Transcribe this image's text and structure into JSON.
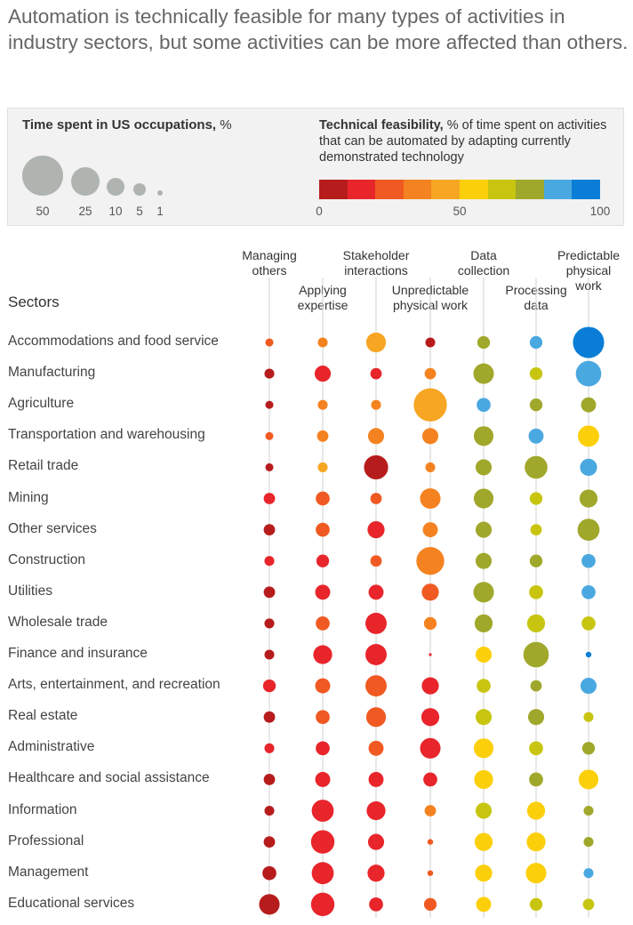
{
  "title": "Automation is technically feasible for many types of activities in industry sectors, but some activities can be more affected than others.",
  "legend": {
    "size_title_bold": "Time spent in US occupations,",
    "size_title_rest": " %",
    "sizes": [
      {
        "label": "50",
        "value": 50
      },
      {
        "label": "25",
        "value": 25
      },
      {
        "label": "10",
        "value": 10
      },
      {
        "label": "5",
        "value": 5
      },
      {
        "label": "1",
        "value": 1
      }
    ],
    "color_title_bold": "Technical feasibility,",
    "color_title_rest": " % of time spent on activities that can be automated by adapting currently demonstrated technology",
    "color_scale": [
      "#b71c1c",
      "#e8252b",
      "#f05a22",
      "#f58220",
      "#f6a623",
      "#fccf0b",
      "#c8c511",
      "#a0a82b",
      "#4aa8e0",
      "#0a7ed6"
    ],
    "scale_labels": [
      "0",
      "50",
      "100"
    ]
  },
  "colors": {
    "axis_line": "#d0d0d0"
  },
  "chart_data": {
    "type": "bubble-matrix",
    "title": "Automation is technically feasible for many types of activities in industry sectors, but some activities can be more affected than others.",
    "row_header": "Sectors",
    "size_measure": "Time spent in US occupations, %",
    "color_measure": "Technical feasibility, % of time spent on activities that can be automated by adapting currently demonstrated technology",
    "color_range": [
      0,
      100
    ],
    "columns": [
      {
        "label": "Managing others"
      },
      {
        "label": "Applying expertise"
      },
      {
        "label": "Stakeholder interactions"
      },
      {
        "label": "Unpredictable physical work"
      },
      {
        "label": "Data collection"
      },
      {
        "label": "Processing data"
      },
      {
        "label": "Predictable physical work"
      }
    ],
    "rows": [
      {
        "sector": "Accommodations and food service",
        "cells": [
          {
            "size": 2,
            "feas": 25
          },
          {
            "size": 3,
            "feas": 32
          },
          {
            "size": 12,
            "feas": 42
          },
          {
            "size": 3,
            "feas": 5
          },
          {
            "size": 5,
            "feas": 75
          },
          {
            "size": 5,
            "feas": 85
          },
          {
            "size": 30,
            "feas": 95
          }
        ]
      },
      {
        "sector": "Manufacturing",
        "cells": [
          {
            "size": 3,
            "feas": 5
          },
          {
            "size": 8,
            "feas": 15
          },
          {
            "size": 4,
            "feas": 15
          },
          {
            "size": 4,
            "feas": 35
          },
          {
            "size": 13,
            "feas": 75
          },
          {
            "size": 5,
            "feas": 65
          },
          {
            "size": 20,
            "feas": 85
          }
        ]
      },
      {
        "sector": "Agriculture",
        "cells": [
          {
            "size": 2,
            "feas": 5
          },
          {
            "size": 3,
            "feas": 32
          },
          {
            "size": 3,
            "feas": 32
          },
          {
            "size": 34,
            "feas": 42
          },
          {
            "size": 6,
            "feas": 85
          },
          {
            "size": 5,
            "feas": 75
          },
          {
            "size": 7,
            "feas": 75
          }
        ]
      },
      {
        "sector": "Transportation and warehousing",
        "cells": [
          {
            "size": 2,
            "feas": 25
          },
          {
            "size": 4,
            "feas": 32
          },
          {
            "size": 8,
            "feas": 32
          },
          {
            "size": 8,
            "feas": 32
          },
          {
            "size": 12,
            "feas": 75
          },
          {
            "size": 7,
            "feas": 85
          },
          {
            "size": 14,
            "feas": 55
          }
        ]
      },
      {
        "sector": "Retail trade",
        "cells": [
          {
            "size": 2,
            "feas": 5
          },
          {
            "size": 3,
            "feas": 42
          },
          {
            "size": 18,
            "feas": 5
          },
          {
            "size": 3,
            "feas": 32
          },
          {
            "size": 8,
            "feas": 75
          },
          {
            "size": 16,
            "feas": 75
          },
          {
            "size": 9,
            "feas": 85
          }
        ]
      },
      {
        "sector": "Mining",
        "cells": [
          {
            "size": 4,
            "feas": 15
          },
          {
            "size": 6,
            "feas": 25
          },
          {
            "size": 4,
            "feas": 25
          },
          {
            "size": 13,
            "feas": 32
          },
          {
            "size": 12,
            "feas": 75
          },
          {
            "size": 5,
            "feas": 65
          },
          {
            "size": 10,
            "feas": 75
          }
        ]
      },
      {
        "sector": "Other services",
        "cells": [
          {
            "size": 4,
            "feas": 5
          },
          {
            "size": 6,
            "feas": 25
          },
          {
            "size": 9,
            "feas": 15
          },
          {
            "size": 7,
            "feas": 32
          },
          {
            "size": 8,
            "feas": 75
          },
          {
            "size": 4,
            "feas": 65
          },
          {
            "size": 15,
            "feas": 75
          }
        ]
      },
      {
        "sector": "Construction",
        "cells": [
          {
            "size": 3,
            "feas": 15
          },
          {
            "size": 5,
            "feas": 15
          },
          {
            "size": 4,
            "feas": 25
          },
          {
            "size": 24,
            "feas": 32
          },
          {
            "size": 8,
            "feas": 75
          },
          {
            "size": 5,
            "feas": 75
          },
          {
            "size": 6,
            "feas": 85
          }
        ]
      },
      {
        "sector": "Utilities",
        "cells": [
          {
            "size": 4,
            "feas": 5
          },
          {
            "size": 7,
            "feas": 15
          },
          {
            "size": 7,
            "feas": 15
          },
          {
            "size": 9,
            "feas": 25
          },
          {
            "size": 13,
            "feas": 75
          },
          {
            "size": 6,
            "feas": 65
          },
          {
            "size": 6,
            "feas": 85
          }
        ]
      },
      {
        "sector": "Wholesale trade",
        "cells": [
          {
            "size": 3,
            "feas": 5
          },
          {
            "size": 6,
            "feas": 25
          },
          {
            "size": 14,
            "feas": 15
          },
          {
            "size": 5,
            "feas": 32
          },
          {
            "size": 10,
            "feas": 75
          },
          {
            "size": 10,
            "feas": 65
          },
          {
            "size": 6,
            "feas": 65
          }
        ]
      },
      {
        "sector": "Finance and insurance",
        "cells": [
          {
            "size": 3,
            "feas": 5
          },
          {
            "size": 11,
            "feas": 15
          },
          {
            "size": 14,
            "feas": 15
          },
          {
            "size": 0.2,
            "feas": 15
          },
          {
            "size": 8,
            "feas": 55
          },
          {
            "size": 20,
            "feas": 75
          },
          {
            "size": 1,
            "feas": 95
          }
        ]
      },
      {
        "sector": "Arts, entertainment, and recreation",
        "cells": [
          {
            "size": 5,
            "feas": 15
          },
          {
            "size": 7,
            "feas": 25
          },
          {
            "size": 14,
            "feas": 25
          },
          {
            "size": 9,
            "feas": 15
          },
          {
            "size": 6,
            "feas": 65
          },
          {
            "size": 4,
            "feas": 75
          },
          {
            "size": 8,
            "feas": 85
          }
        ]
      },
      {
        "sector": "Real estate",
        "cells": [
          {
            "size": 4,
            "feas": 5
          },
          {
            "size": 6,
            "feas": 25
          },
          {
            "size": 12,
            "feas": 25
          },
          {
            "size": 10,
            "feas": 15
          },
          {
            "size": 8,
            "feas": 65
          },
          {
            "size": 8,
            "feas": 75
          },
          {
            "size": 3,
            "feas": 65
          }
        ]
      },
      {
        "sector": "Administrative",
        "cells": [
          {
            "size": 3,
            "feas": 15
          },
          {
            "size": 6,
            "feas": 15
          },
          {
            "size": 7,
            "feas": 25
          },
          {
            "size": 13,
            "feas": 15
          },
          {
            "size": 12,
            "feas": 55
          },
          {
            "size": 6,
            "feas": 65
          },
          {
            "size": 5,
            "feas": 75
          }
        ]
      },
      {
        "sector": "Healthcare and social assistance",
        "cells": [
          {
            "size": 4,
            "feas": 5
          },
          {
            "size": 7,
            "feas": 15
          },
          {
            "size": 7,
            "feas": 15
          },
          {
            "size": 6,
            "feas": 15
          },
          {
            "size": 11,
            "feas": 55
          },
          {
            "size": 6,
            "feas": 75
          },
          {
            "size": 12,
            "feas": 55
          }
        ]
      },
      {
        "sector": "Information",
        "cells": [
          {
            "size": 3,
            "feas": 5
          },
          {
            "size": 15,
            "feas": 15
          },
          {
            "size": 11,
            "feas": 15
          },
          {
            "size": 4,
            "feas": 32
          },
          {
            "size": 8,
            "feas": 65
          },
          {
            "size": 10,
            "feas": 55
          },
          {
            "size": 3,
            "feas": 75
          }
        ]
      },
      {
        "sector": "Professional",
        "cells": [
          {
            "size": 4,
            "feas": 5
          },
          {
            "size": 17,
            "feas": 15
          },
          {
            "size": 8,
            "feas": 15
          },
          {
            "size": 1,
            "feas": 25
          },
          {
            "size": 10,
            "feas": 55
          },
          {
            "size": 11,
            "feas": 55
          },
          {
            "size": 3,
            "feas": 75
          }
        ]
      },
      {
        "sector": "Management",
        "cells": [
          {
            "size": 6,
            "feas": 5
          },
          {
            "size": 15,
            "feas": 15
          },
          {
            "size": 9,
            "feas": 15
          },
          {
            "size": 1,
            "feas": 25
          },
          {
            "size": 9,
            "feas": 55
          },
          {
            "size": 13,
            "feas": 55
          },
          {
            "size": 3,
            "feas": 85
          }
        ]
      },
      {
        "sector": "Educational services",
        "cells": [
          {
            "size": 13,
            "feas": 5
          },
          {
            "size": 17,
            "feas": 15
          },
          {
            "size": 6,
            "feas": 15
          },
          {
            "size": 5,
            "feas": 25
          },
          {
            "size": 7,
            "feas": 55
          },
          {
            "size": 5,
            "feas": 65
          },
          {
            "size": 4,
            "feas": 65
          }
        ]
      }
    ]
  }
}
